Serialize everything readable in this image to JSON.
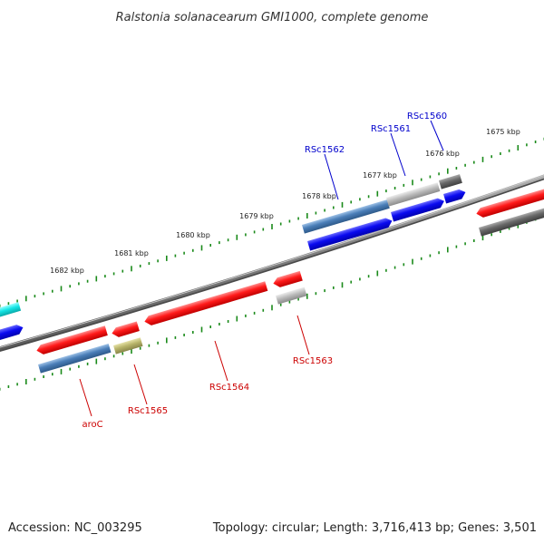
{
  "title": "Ralstonia solanacearum GMI1000, complete genome",
  "footer": {
    "accession": "Accession: NC_003295",
    "summary": "Topology: circular; Length: 3,716,413 bp; Genes: 3,501"
  },
  "tick_labels": [
    "1675 kbp",
    "1676 kbp",
    "1677 kbp",
    "1678 kbp",
    "1679 kbp",
    "1680 kbp",
    "1681 kbp",
    "1682 kbp"
  ],
  "gene_labels": {
    "rsc1560": "RSc1560",
    "rsc1561": "RSc1561",
    "rsc1562": "RSc1562",
    "rsc1563": "RSc1563",
    "rsc1564": "RSc1564",
    "rsc1565": "RSc1565",
    "aroC": "aroC"
  },
  "colors": {
    "backbone": "#808080",
    "ticks": "#1a8a1a",
    "red": "#ee1111",
    "blue": "#0a0aee",
    "steelblue": "#4a7eb8",
    "silver": "#b8b8b8",
    "darkgray": "#686868",
    "olive": "#b8b46a",
    "cyan": "#14e6e6",
    "label_blue": "#0000cc",
    "label_red": "#cc0000"
  }
}
